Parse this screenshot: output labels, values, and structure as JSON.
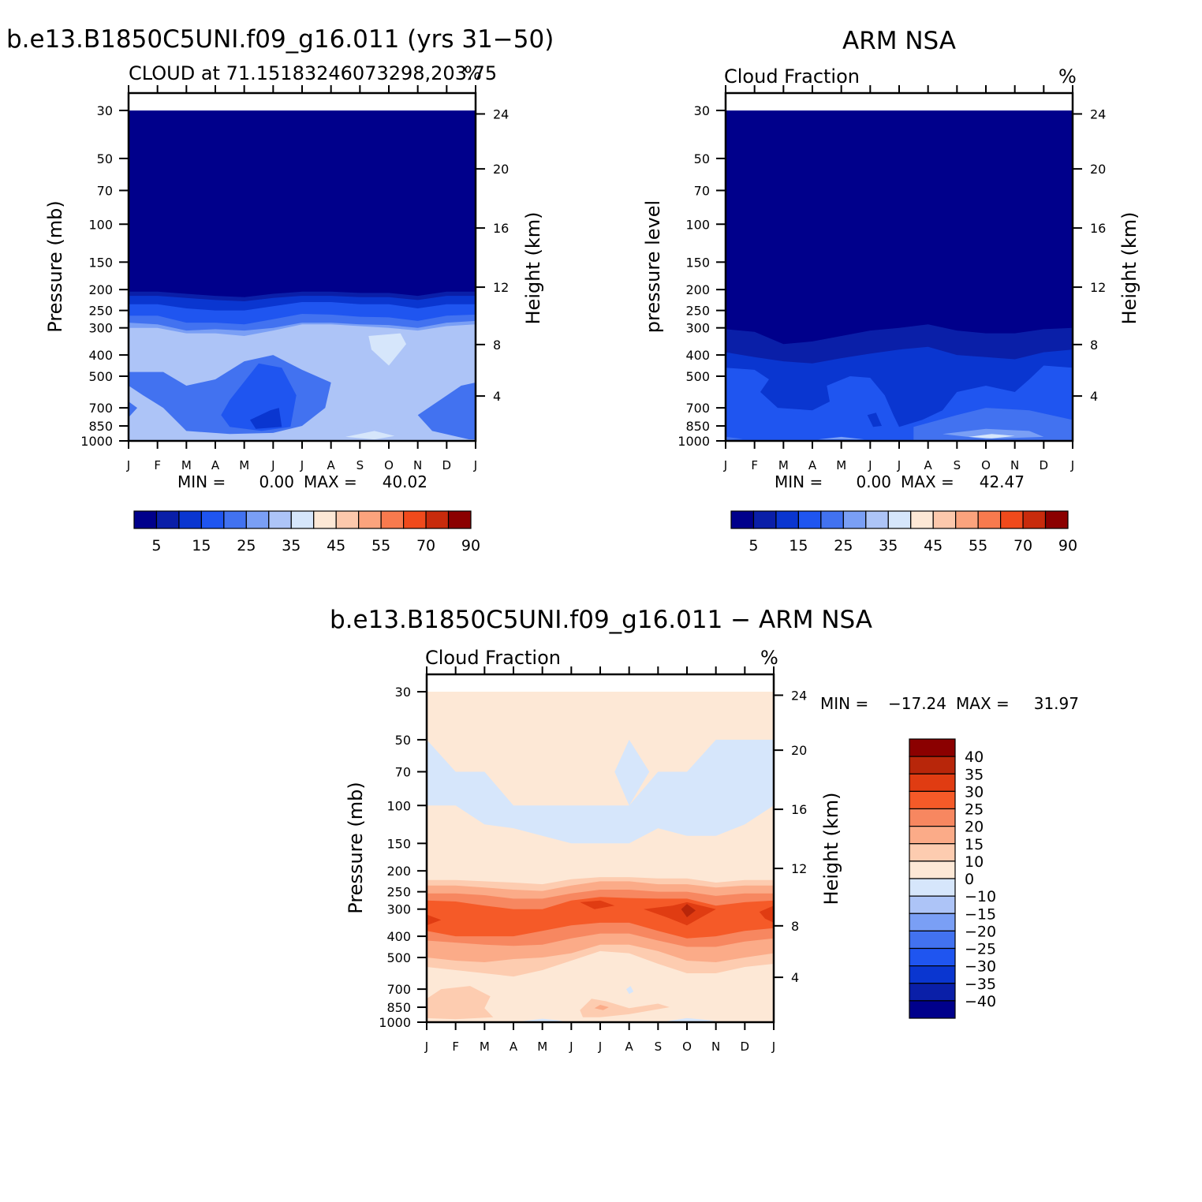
{
  "chart_data": [
    {
      "id": "model",
      "type": "heatmap",
      "title": "b.e13.B1850C5UNI.f09_g16.011 (yrs 31−50)",
      "subtitle_left": "CLOUD at 71.15183246073298,203.75",
      "subtitle_right": "%",
      "ylabel": "Pressure (mb)",
      "y2label": "Height (km)",
      "x_ticks": [
        "J",
        "F",
        "M",
        "A",
        "M",
        "J",
        "J",
        "A",
        "S",
        "O",
        "N",
        "D",
        "J"
      ],
      "y_ticks": [
        "30",
        "50",
        "70",
        "100",
        "150",
        "200",
        "250",
        "300",
        "400",
        "500",
        "700",
        "850",
        "1000"
      ],
      "y2_ticks": [
        "24",
        "20",
        "16",
        "12",
        "8",
        "4"
      ],
      "stats": {
        "min_label": "MIN =",
        "min": "0.00",
        "max_label": "MAX =",
        "max": "40.02"
      },
      "colorbar": {
        "labels": [
          "5",
          "15",
          "25",
          "35",
          "45",
          "55",
          "70",
          "90"
        ]
      },
      "fields": [
        {
          "name": "upper",
          "top": 30,
          "bottom": [
            200,
            195,
            205,
            210,
            215,
            205,
            195,
            195,
            200,
            200,
            212,
            200,
            198
          ],
          "level": 0
        },
        {
          "name": "mid",
          "top": [
            200,
            195,
            205,
            210,
            215,
            205,
            195,
            195,
            200,
            200,
            212,
            200,
            198
          ],
          "bottom": [
            300,
            300,
            310,
            310,
            315,
            300,
            290,
            290,
            295,
            300,
            305,
            295,
            290
          ],
          "level": 3
        },
        {
          "name": "lower",
          "top": 300,
          "bottom": 1000,
          "level": 5
        }
      ]
    },
    {
      "id": "obs",
      "type": "heatmap",
      "title": "ARM NSA",
      "subtitle_left": "Cloud Fraction",
      "subtitle_right": "%",
      "ylabel": "pressure level",
      "y2label": "Height (km)",
      "x_ticks": [
        "J",
        "F",
        "M",
        "A",
        "M",
        "J",
        "J",
        "A",
        "S",
        "O",
        "N",
        "D",
        "J"
      ],
      "y_ticks": [
        "30",
        "50",
        "70",
        "100",
        "150",
        "200",
        "250",
        "300",
        "400",
        "500",
        "700",
        "850",
        "1000"
      ],
      "y2_ticks": [
        "24",
        "20",
        "16",
        "12",
        "8",
        "4"
      ],
      "stats": {
        "min_label": "MIN =",
        "min": "0.00",
        "max_label": "MAX =",
        "max": "42.47"
      },
      "colorbar": {
        "labels": [
          "5",
          "15",
          "25",
          "35",
          "45",
          "55",
          "70",
          "90"
        ]
      }
    },
    {
      "id": "diff",
      "type": "heatmap",
      "title": "b.e13.B1850C5UNI.f09_g16.011 − ARM NSA",
      "subtitle_left": "Cloud Fraction",
      "subtitle_right": "%",
      "ylabel": "Pressure (mb)",
      "y2label": "Height (km)",
      "x_ticks": [
        "J",
        "F",
        "M",
        "A",
        "M",
        "J",
        "J",
        "A",
        "S",
        "O",
        "N",
        "D",
        "J"
      ],
      "y_ticks": [
        "30",
        "50",
        "70",
        "100",
        "150",
        "200",
        "250",
        "300",
        "400",
        "500",
        "700",
        "850",
        "1000"
      ],
      "y2_ticks": [
        "24",
        "20",
        "16",
        "12",
        "8",
        "4"
      ],
      "stats": {
        "min_label": "MIN =",
        "min": "−17.24",
        "max_label": "MAX =",
        "max": "31.97"
      },
      "colorbar": {
        "labels": [
          "40",
          "35",
          "30",
          "25",
          "20",
          "15",
          "10",
          "0",
          "−10",
          "−15",
          "−20",
          "−25",
          "−30",
          "−35",
          "−40"
        ]
      }
    }
  ],
  "colors": {
    "seq": [
      "#00008b",
      "#0a1fa8",
      "#0a36d0",
      "#1f55f0",
      "#4272f0",
      "#7a9ff5",
      "#adc4f7",
      "#d6e6fb",
      "#fde8d6",
      "#fcc8ac",
      "#fba37d",
      "#f87a4e",
      "#f04a1c",
      "#c82b0c",
      "#8b0000"
    ],
    "div": [
      "#8b0000",
      "#b8260a",
      "#e03c12",
      "#f55a28",
      "#f78760",
      "#fbab88",
      "#fdccb0",
      "#fde8d6",
      "#d6e6fb",
      "#adc4f7",
      "#7a9ff5",
      "#4272f0",
      "#1f55f0",
      "#0a36d0",
      "#0a1fa8",
      "#00008b"
    ]
  }
}
